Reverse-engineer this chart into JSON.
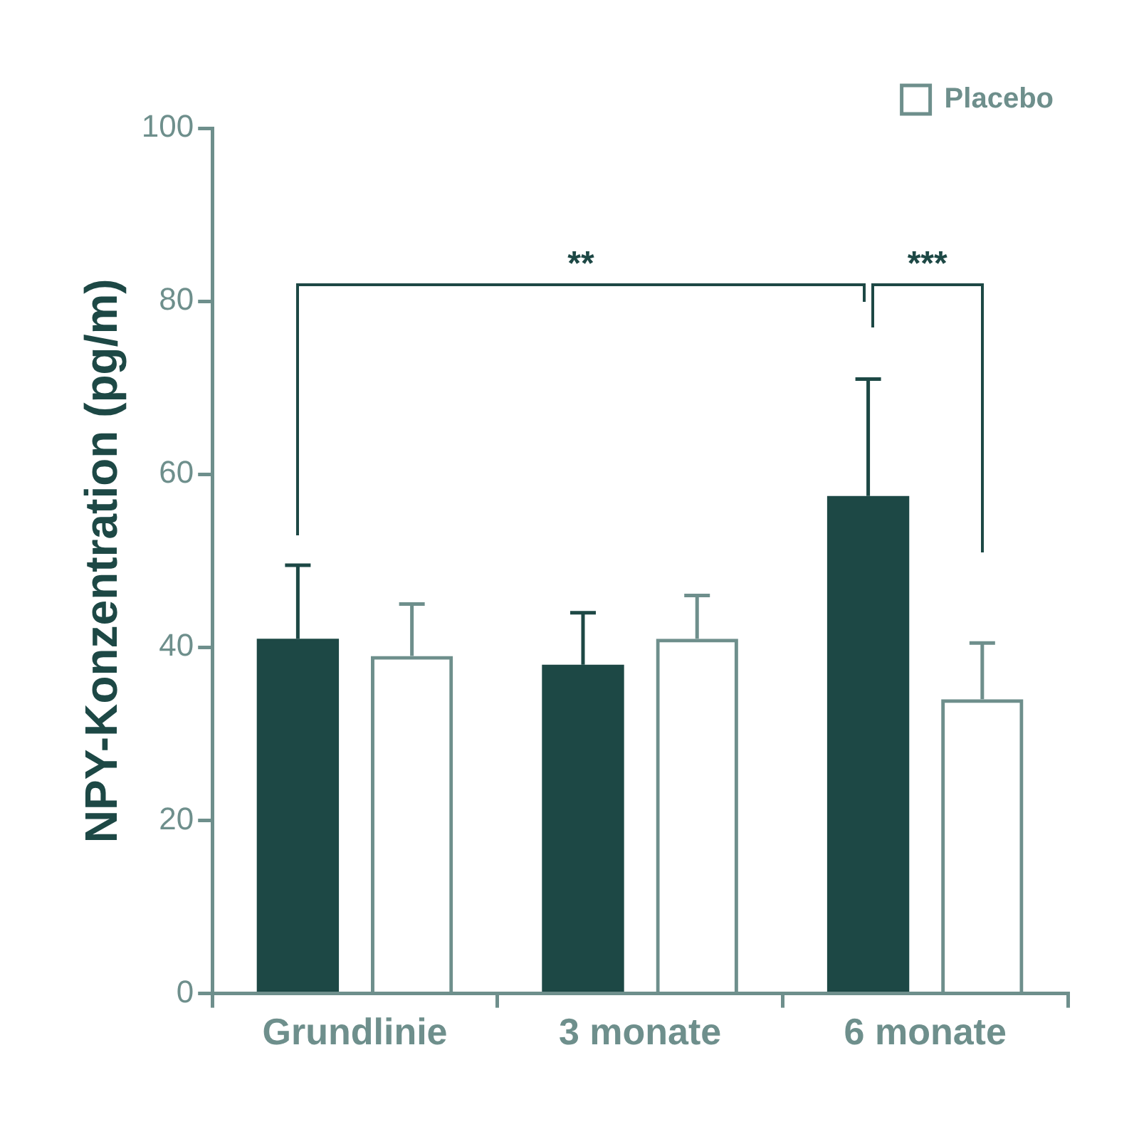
{
  "chart_data": {
    "type": "bar",
    "ylabel": "NPY-Konzentration (pg/m)",
    "categories": [
      "Grundlinie",
      "3 monate",
      "6 monate"
    ],
    "series": [
      {
        "color": "#1d4845",
        "values": [
          41,
          38,
          57.5
        ],
        "errors": [
          [
            41,
            49.5
          ],
          [
            38,
            44
          ],
          [
            57.5,
            71
          ]
        ]
      },
      {
        "name": "Placebo",
        "color": "#6e8f8c",
        "values": [
          39,
          41,
          34
        ],
        "errors": [
          [
            39,
            45
          ],
          [
            41,
            46
          ],
          [
            34,
            40.5
          ]
        ]
      }
    ],
    "ylim": [
      0,
      100
    ],
    "yticks": [
      0,
      20,
      40,
      60,
      80,
      100
    ],
    "legend": "top right",
    "annotations": [
      "**",
      "***"
    ]
  }
}
